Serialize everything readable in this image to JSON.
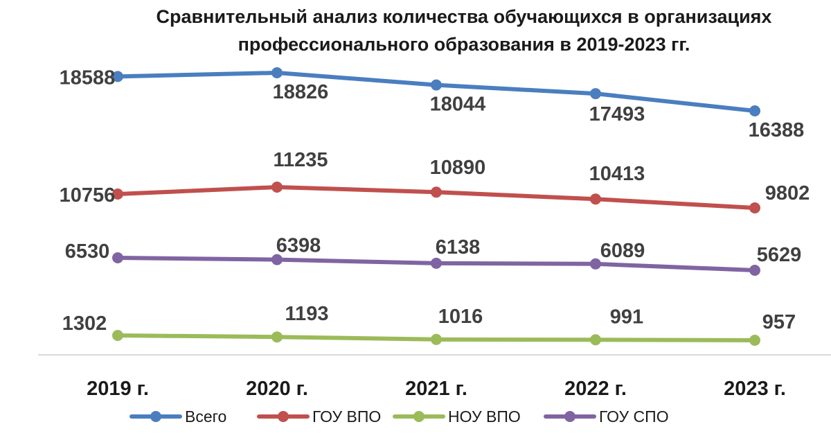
{
  "chart_data": {
    "type": "line",
    "title": "Сравнительный анализ количества обучающихся в организациях профессионального образования в 2019-2023 гг.",
    "categories": [
      "2019 г.",
      "2020 г.",
      "2021 г.",
      "2022 г.",
      "2023 г."
    ],
    "series": [
      {
        "name": "Всего",
        "color": "#4a7ebf",
        "values": [
          18588,
          18826,
          18044,
          17493,
          16388
        ]
      },
      {
        "name": "ГОУ ВПО",
        "color": "#c0504d",
        "values": [
          10756,
          11235,
          10890,
          10413,
          9802
        ]
      },
      {
        "name": "НОУ ВПО",
        "color": "#9bbb59",
        "values": [
          1302,
          1193,
          1016,
          991,
          957
        ]
      },
      {
        "name": "ГОУ СПО",
        "color": "#8064a2",
        "values": [
          6530,
          6398,
          6138,
          6089,
          5629
        ]
      }
    ],
    "legend_position": "bottom",
    "grid": false
  }
}
